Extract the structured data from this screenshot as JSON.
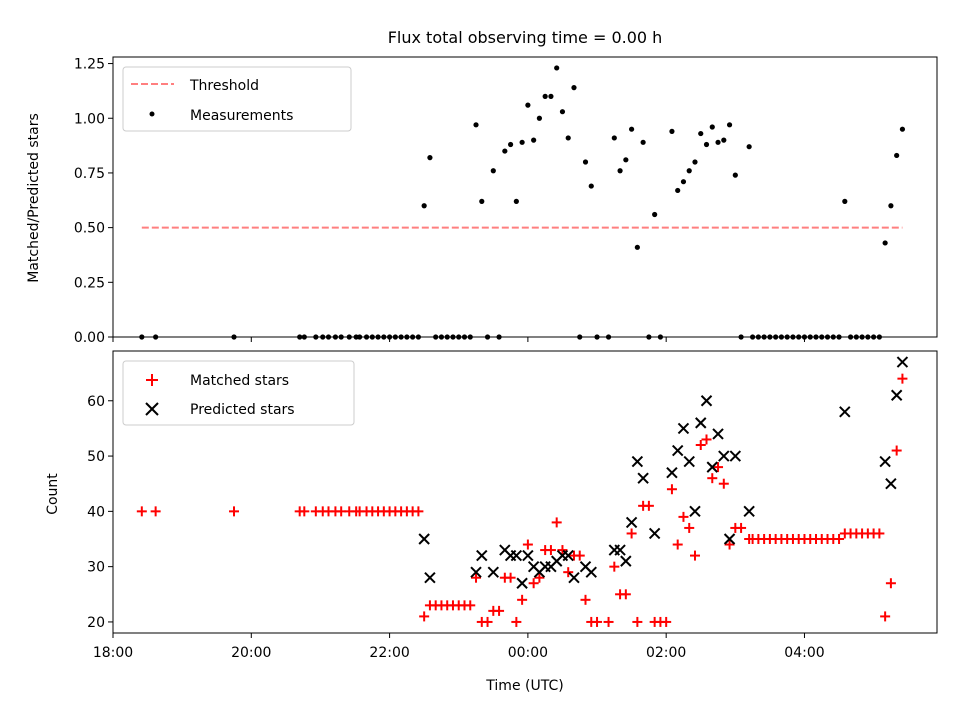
{
  "chart_data": [
    {
      "type": "scatter",
      "title": "Flux total observing time = 0.00 h",
      "xlabel": "",
      "ylabel": "Matched/Predicted stars",
      "xlim": [
        "18:00",
        "05:55"
      ],
      "ylim": [
        0,
        1.28
      ],
      "yticks": [
        "0.00",
        "0.25",
        "0.50",
        "0.75",
        "1.00",
        "1.25"
      ],
      "xticks_shown": false,
      "legend_position": "upper-left",
      "threshold": {
        "name": "Threshold",
        "value": 0.5,
        "x_start": "18:25",
        "x_end": "05:25",
        "color": "#ff7f7f",
        "style": "dashed"
      },
      "series": [
        {
          "name": "Measurements",
          "color": "#000000",
          "marker": "dot",
          "points": [
            [
              "18:25",
              0
            ],
            [
              "18:37",
              0
            ],
            [
              "19:45",
              0
            ],
            [
              "20:42",
              0
            ],
            [
              "20:46",
              0
            ],
            [
              "20:56",
              0
            ],
            [
              "21:02",
              0
            ],
            [
              "21:07",
              0
            ],
            [
              "21:13",
              0
            ],
            [
              "21:18",
              0
            ],
            [
              "21:25",
              0
            ],
            [
              "21:31",
              0
            ],
            [
              "21:34",
              0
            ],
            [
              "21:40",
              0
            ],
            [
              "21:45",
              0
            ],
            [
              "21:50",
              0
            ],
            [
              "21:55",
              0
            ],
            [
              "22:00",
              0
            ],
            [
              "22:05",
              0
            ],
            [
              "22:10",
              0
            ],
            [
              "22:15",
              0
            ],
            [
              "22:20",
              0
            ],
            [
              "22:25",
              0
            ],
            [
              "22:30",
              0.6
            ],
            [
              "22:35",
              0.82
            ],
            [
              "22:40",
              0
            ],
            [
              "22:45",
              0
            ],
            [
              "22:50",
              0
            ],
            [
              "22:55",
              0
            ],
            [
              "23:00",
              0
            ],
            [
              "23:05",
              0
            ],
            [
              "23:10",
              0
            ],
            [
              "23:15",
              0.97
            ],
            [
              "23:20",
              0.62
            ],
            [
              "23:25",
              0
            ],
            [
              "23:30",
              0.76
            ],
            [
              "23:35",
              0
            ],
            [
              "23:40",
              0.85
            ],
            [
              "23:45",
              0.88
            ],
            [
              "23:50",
              0.62
            ],
            [
              "23:55",
              0.89
            ],
            [
              "00:00",
              1.06
            ],
            [
              "00:05",
              0.9
            ],
            [
              "00:10",
              1.0
            ],
            [
              "00:15",
              1.1
            ],
            [
              "00:20",
              1.1
            ],
            [
              "00:25",
              1.23
            ],
            [
              "00:30",
              1.03
            ],
            [
              "00:35",
              0.91
            ],
            [
              "00:40",
              1.14
            ],
            [
              "00:45",
              0
            ],
            [
              "00:50",
              0.8
            ],
            [
              "00:55",
              0.69
            ],
            [
              "01:00",
              0
            ],
            [
              "01:10",
              0
            ],
            [
              "01:15",
              0.91
            ],
            [
              "01:20",
              0.76
            ],
            [
              "01:25",
              0.81
            ],
            [
              "01:30",
              0.95
            ],
            [
              "01:35",
              0.41
            ],
            [
              "01:40",
              0.89
            ],
            [
              "01:45",
              0
            ],
            [
              "01:50",
              0.56
            ],
            [
              "01:55",
              0
            ],
            [
              "02:05",
              0.94
            ],
            [
              "02:10",
              0.67
            ],
            [
              "02:15",
              0.71
            ],
            [
              "02:20",
              0.76
            ],
            [
              "02:25",
              0.8
            ],
            [
              "02:30",
              0.93
            ],
            [
              "02:35",
              0.88
            ],
            [
              "02:40",
              0.96
            ],
            [
              "02:45",
              0.89
            ],
            [
              "02:50",
              0.9
            ],
            [
              "02:55",
              0.97
            ],
            [
              "03:00",
              0.74
            ],
            [
              "03:05",
              0
            ],
            [
              "03:12",
              0.87
            ],
            [
              "03:15",
              0
            ],
            [
              "03:20",
              0
            ],
            [
              "03:25",
              0
            ],
            [
              "03:30",
              0
            ],
            [
              "03:35",
              0
            ],
            [
              "03:40",
              0
            ],
            [
              "03:45",
              0
            ],
            [
              "03:50",
              0
            ],
            [
              "03:55",
              0
            ],
            [
              "04:00",
              0
            ],
            [
              "04:05",
              0
            ],
            [
              "04:10",
              0
            ],
            [
              "04:15",
              0
            ],
            [
              "04:20",
              0
            ],
            [
              "04:25",
              0
            ],
            [
              "04:30",
              0
            ],
            [
              "04:35",
              0.62
            ],
            [
              "04:40",
              0
            ],
            [
              "04:45",
              0
            ],
            [
              "04:50",
              0
            ],
            [
              "04:55",
              0
            ],
            [
              "05:00",
              0
            ],
            [
              "05:05",
              0
            ],
            [
              "05:10",
              0.43
            ],
            [
              "05:15",
              0.6
            ],
            [
              "05:20",
              0.83
            ],
            [
              "05:25",
              0.95
            ]
          ]
        }
      ]
    },
    {
      "type": "scatter",
      "title": "",
      "xlabel": "Time (UTC)",
      "ylabel": "Count",
      "xlim": [
        "18:00",
        "05:55"
      ],
      "ylim": [
        18,
        69
      ],
      "xticks": [
        "18:00",
        "20:00",
        "22:00",
        "00:00",
        "02:00",
        "04:00"
      ],
      "yticks": [
        "20",
        "30",
        "40",
        "50",
        "60"
      ],
      "legend_position": "upper-left",
      "series": [
        {
          "name": "Matched stars",
          "color": "#ff0000",
          "marker": "plus",
          "points": [
            [
              "18:25",
              40
            ],
            [
              "18:37",
              40
            ],
            [
              "19:45",
              40
            ],
            [
              "20:42",
              40
            ],
            [
              "20:46",
              40
            ],
            [
              "20:56",
              40
            ],
            [
              "21:02",
              40
            ],
            [
              "21:07",
              40
            ],
            [
              "21:13",
              40
            ],
            [
              "21:18",
              40
            ],
            [
              "21:25",
              40
            ],
            [
              "21:31",
              40
            ],
            [
              "21:34",
              40
            ],
            [
              "21:40",
              40
            ],
            [
              "21:45",
              40
            ],
            [
              "21:50",
              40
            ],
            [
              "21:55",
              40
            ],
            [
              "22:00",
              40
            ],
            [
              "22:05",
              40
            ],
            [
              "22:10",
              40
            ],
            [
              "22:15",
              40
            ],
            [
              "22:20",
              40
            ],
            [
              "22:25",
              40
            ],
            [
              "22:30",
              21
            ],
            [
              "22:35",
              23
            ],
            [
              "22:40",
              23
            ],
            [
              "22:45",
              23
            ],
            [
              "22:50",
              23
            ],
            [
              "22:55",
              23
            ],
            [
              "23:00",
              23
            ],
            [
              "23:05",
              23
            ],
            [
              "23:10",
              23
            ],
            [
              "23:15",
              28
            ],
            [
              "23:20",
              20
            ],
            [
              "23:25",
              20
            ],
            [
              "23:30",
              22
            ],
            [
              "23:35",
              22
            ],
            [
              "23:40",
              28
            ],
            [
              "23:45",
              28
            ],
            [
              "23:50",
              20
            ],
            [
              "23:55",
              24
            ],
            [
              "00:00",
              34
            ],
            [
              "00:05",
              27
            ],
            [
              "00:10",
              28
            ],
            [
              "00:15",
              33
            ],
            [
              "00:20",
              33
            ],
            [
              "00:25",
              38
            ],
            [
              "00:30",
              33
            ],
            [
              "00:35",
              29
            ],
            [
              "00:40",
              32
            ],
            [
              "00:45",
              32
            ],
            [
              "00:50",
              24
            ],
            [
              "00:55",
              20
            ],
            [
              "01:00",
              20
            ],
            [
              "01:10",
              20
            ],
            [
              "01:15",
              30
            ],
            [
              "01:20",
              25
            ],
            [
              "01:25",
              25
            ],
            [
              "01:30",
              36
            ],
            [
              "01:35",
              20
            ],
            [
              "01:40",
              41
            ],
            [
              "01:45",
              41
            ],
            [
              "01:50",
              20
            ],
            [
              "01:55",
              20
            ],
            [
              "02:00",
              20
            ],
            [
              "02:05",
              44
            ],
            [
              "02:10",
              34
            ],
            [
              "02:15",
              39
            ],
            [
              "02:20",
              37
            ],
            [
              "02:25",
              32
            ],
            [
              "02:30",
              52
            ],
            [
              "02:35",
              53
            ],
            [
              "02:40",
              46
            ],
            [
              "02:45",
              48
            ],
            [
              "02:50",
              45
            ],
            [
              "02:55",
              34
            ],
            [
              "03:00",
              37
            ],
            [
              "03:05",
              37
            ],
            [
              "03:12",
              35
            ],
            [
              "03:15",
              35
            ],
            [
              "03:20",
              35
            ],
            [
              "03:25",
              35
            ],
            [
              "03:30",
              35
            ],
            [
              "03:35",
              35
            ],
            [
              "03:40",
              35
            ],
            [
              "03:45",
              35
            ],
            [
              "03:50",
              35
            ],
            [
              "03:55",
              35
            ],
            [
              "04:00",
              35
            ],
            [
              "04:05",
              35
            ],
            [
              "04:10",
              35
            ],
            [
              "04:15",
              35
            ],
            [
              "04:20",
              35
            ],
            [
              "04:25",
              35
            ],
            [
              "04:30",
              35
            ],
            [
              "04:35",
              36
            ],
            [
              "04:40",
              36
            ],
            [
              "04:45",
              36
            ],
            [
              "04:50",
              36
            ],
            [
              "04:55",
              36
            ],
            [
              "05:00",
              36
            ],
            [
              "05:05",
              36
            ],
            [
              "05:10",
              21
            ],
            [
              "05:15",
              27
            ],
            [
              "05:20",
              51
            ],
            [
              "05:25",
              64
            ]
          ]
        },
        {
          "name": "Predicted stars",
          "color": "#000000",
          "marker": "x",
          "points": [
            [
              "22:30",
              35
            ],
            [
              "22:35",
              28
            ],
            [
              "23:15",
              29
            ],
            [
              "23:20",
              32
            ],
            [
              "23:30",
              29
            ],
            [
              "23:40",
              33
            ],
            [
              "23:45",
              32
            ],
            [
              "23:50",
              32
            ],
            [
              "23:55",
              27
            ],
            [
              "00:00",
              32
            ],
            [
              "00:05",
              30
            ],
            [
              "00:10",
              29
            ],
            [
              "00:15",
              30
            ],
            [
              "00:20",
              30
            ],
            [
              "00:25",
              31
            ],
            [
              "00:30",
              32
            ],
            [
              "00:35",
              32
            ],
            [
              "00:40",
              28
            ],
            [
              "00:50",
              30
            ],
            [
              "00:55",
              29
            ],
            [
              "01:15",
              33
            ],
            [
              "01:20",
              33
            ],
            [
              "01:25",
              31
            ],
            [
              "01:30",
              38
            ],
            [
              "01:35",
              49
            ],
            [
              "01:40",
              46
            ],
            [
              "01:50",
              36
            ],
            [
              "02:05",
              47
            ],
            [
              "02:10",
              51
            ],
            [
              "02:15",
              55
            ],
            [
              "02:20",
              49
            ],
            [
              "02:25",
              40
            ],
            [
              "02:30",
              56
            ],
            [
              "02:35",
              60
            ],
            [
              "02:40",
              48
            ],
            [
              "02:45",
              54
            ],
            [
              "02:50",
              50
            ],
            [
              "02:55",
              35
            ],
            [
              "03:00",
              50
            ],
            [
              "03:12",
              40
            ],
            [
              "04:35",
              58
            ],
            [
              "05:10",
              49
            ],
            [
              "05:15",
              45
            ],
            [
              "05:20",
              61
            ],
            [
              "05:25",
              67
            ]
          ]
        }
      ]
    }
  ]
}
